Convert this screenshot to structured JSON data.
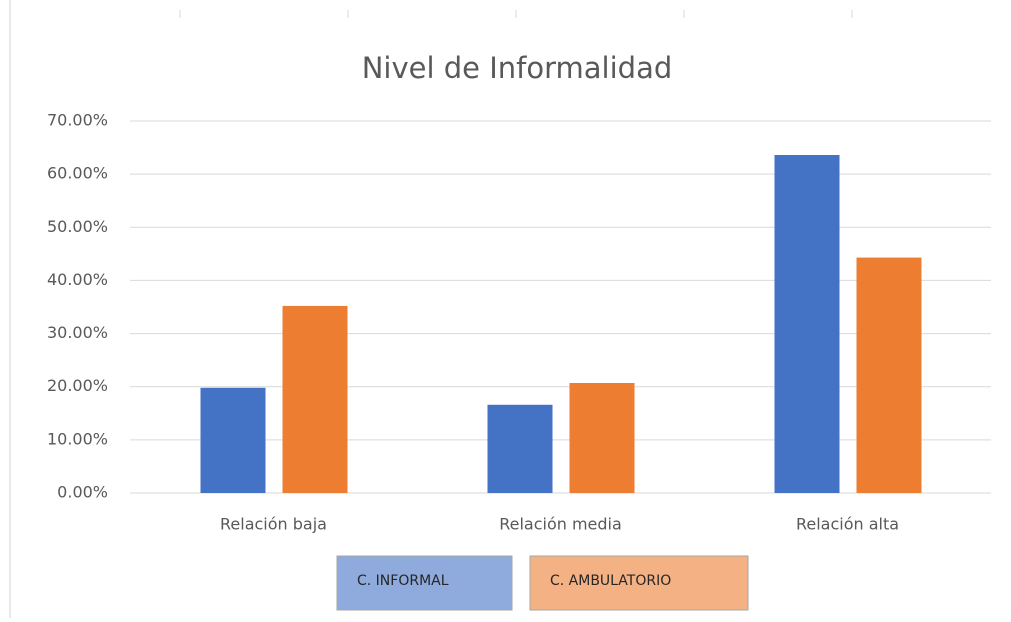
{
  "chart_data": {
    "type": "bar",
    "title": "Nivel de Informalidad",
    "categories": [
      "Relación baja",
      "Relación media",
      "Relación alta"
    ],
    "series": [
      {
        "name": "C. INFORMAL",
        "color": "#4472c4",
        "legend_color": "#8faadc",
        "values": [
          19.8,
          16.6,
          63.6
        ]
      },
      {
        "name": "C. AMBULATORIO",
        "color": "#ed7d31",
        "legend_color": "#f4b183",
        "values": [
          35.2,
          20.7,
          44.3
        ]
      }
    ],
    "ylim": [
      0,
      70
    ],
    "yticks": [
      {
        "value": 0,
        "label": "0.00%"
      },
      {
        "value": 10,
        "label": "10.00%"
      },
      {
        "value": 20,
        "label": "20.00%"
      },
      {
        "value": 30,
        "label": "30.00%"
      },
      {
        "value": 40,
        "label": "40.00%"
      },
      {
        "value": 50,
        "label": "50.00%"
      },
      {
        "value": 60,
        "label": "60.00%"
      },
      {
        "value": 70,
        "label": "70.00%"
      }
    ],
    "grid": true
  }
}
